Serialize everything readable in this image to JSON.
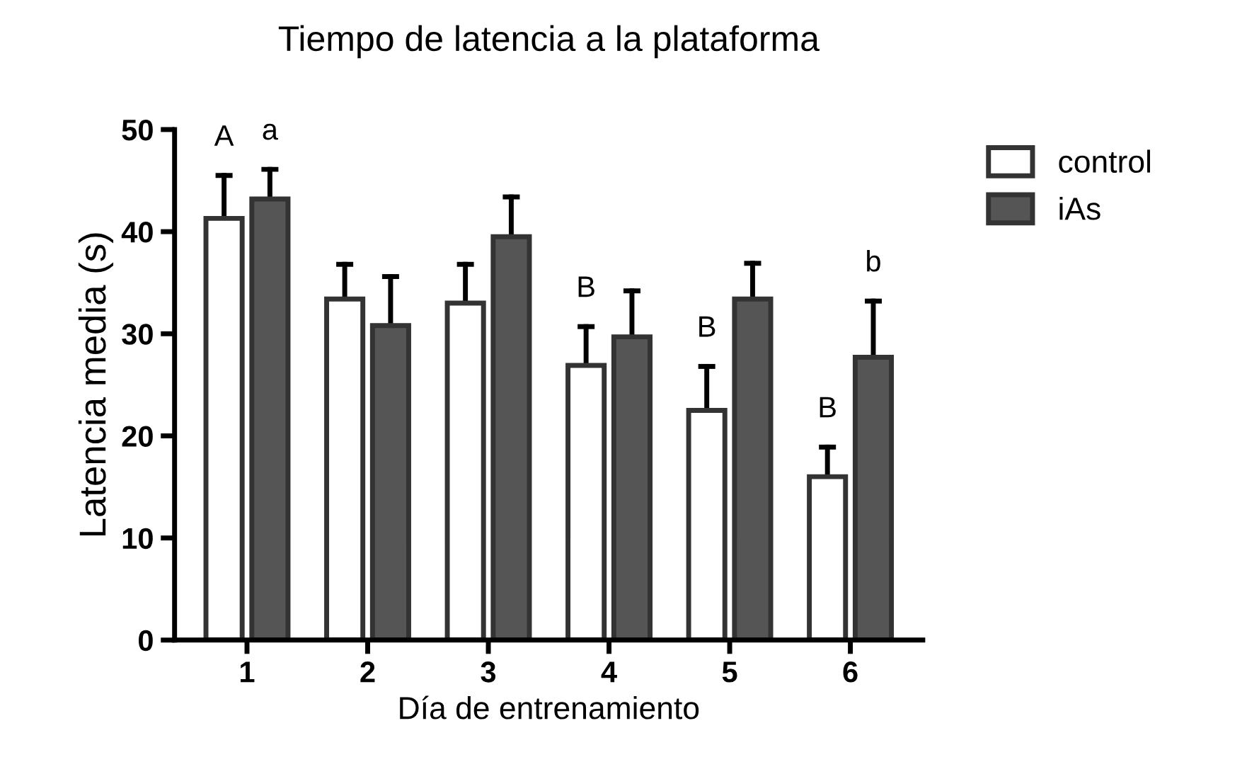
{
  "chart_data": {
    "type": "bar",
    "title": "Tiempo de latencia a la plataforma",
    "xlabel": "Día de entrenamiento",
    "ylabel": "Latencia media (s)",
    "categories": [
      "1",
      "2",
      "3",
      "4",
      "5",
      "6"
    ],
    "series": [
      {
        "name": "control",
        "color": "#ffffff",
        "values": [
          41.3,
          33.4,
          33.0,
          26.9,
          22.5,
          16.0
        ],
        "errors": [
          [
            41.3,
            45.5
          ],
          [
            33.4,
            36.8
          ],
          [
            33.0,
            36.8
          ],
          [
            26.9,
            30.7
          ],
          [
            22.5,
            26.8
          ],
          [
            16.0,
            18.9
          ]
        ]
      },
      {
        "name": "iAs",
        "color": "#555555",
        "values": [
          43.2,
          30.8,
          39.5,
          29.7,
          33.4,
          27.7
        ],
        "errors": [
          [
            43.2,
            46.1
          ],
          [
            30.8,
            35.6
          ],
          [
            39.5,
            43.4
          ],
          [
            29.7,
            34.2
          ],
          [
            33.4,
            36.9
          ],
          [
            27.7,
            33.2
          ]
        ]
      }
    ],
    "ylim": [
      0,
      50
    ],
    "yticks": [
      0,
      10,
      20,
      30,
      40,
      50
    ],
    "grid": false,
    "legend": "top right",
    "annotations": [
      {
        "text": "A",
        "x": "1",
        "y": 41.3
      },
      {
        "text": "a",
        "x": "1",
        "y": 43.2
      },
      {
        "text": "B",
        "x": "4",
        "y": 26.9
      },
      {
        "text": "B",
        "x": "5",
        "y": 22.5
      },
      {
        "text": "B",
        "x": "6",
        "y": 16.0
      },
      {
        "text": "b",
        "x": "6",
        "y": 27.7
      }
    ]
  }
}
